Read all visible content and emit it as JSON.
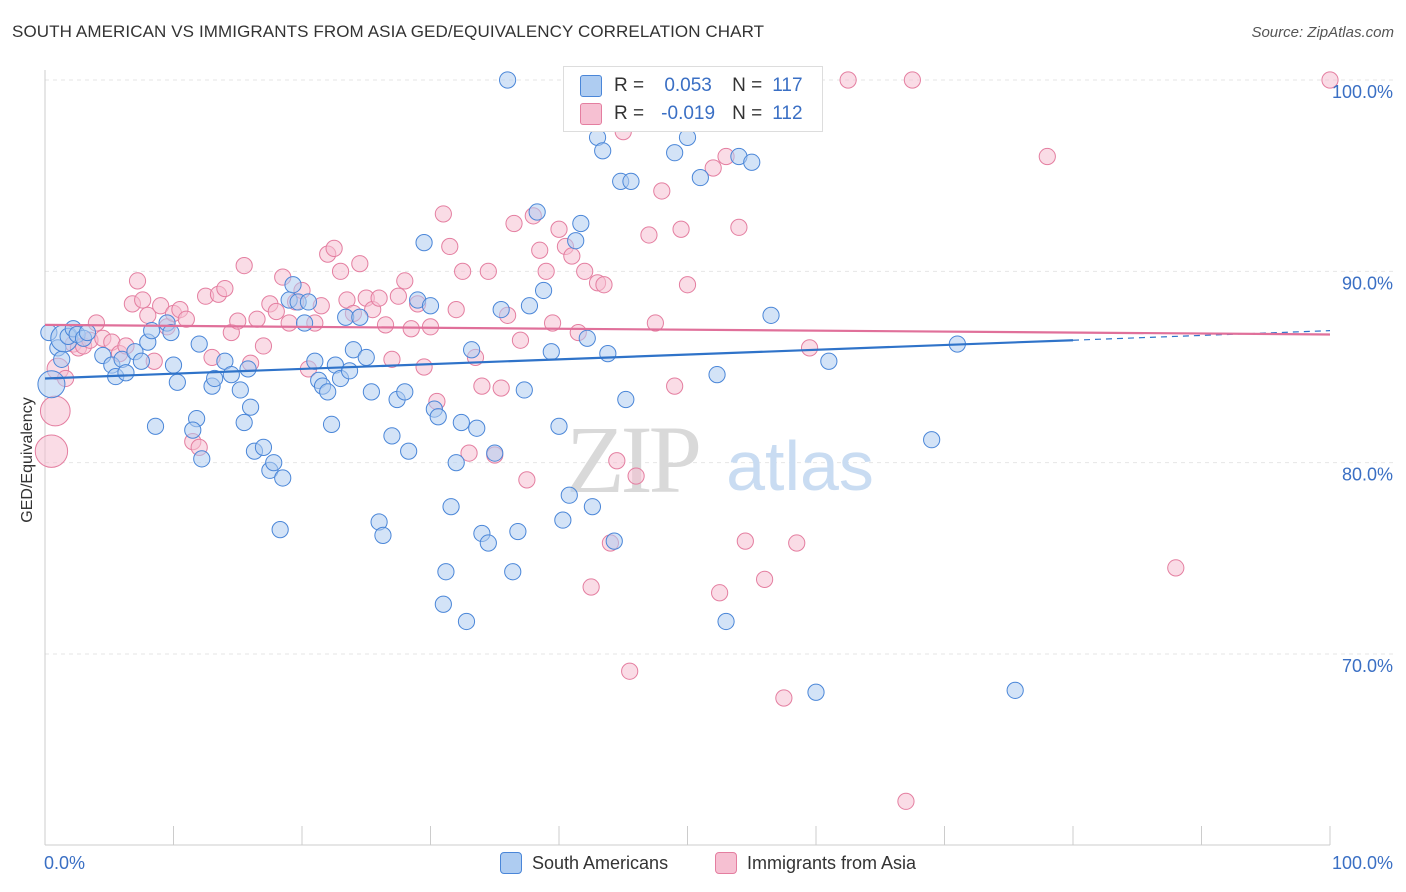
{
  "title": "SOUTH AMERICAN VS IMMIGRANTS FROM ASIA GED/EQUIVALENCY CORRELATION CHART",
  "source": "Source: ZipAtlas.com",
  "watermark": {
    "zip": "ZIP",
    "atlas": "atlas"
  },
  "colors": {
    "blue_fill": "#aeccf1",
    "blue_stroke": "#4a86d8",
    "blue_line": "#2f73c9",
    "pink_fill": "#f6c0d2",
    "pink_stroke": "#e47ea0",
    "pink_line": "#e0709a",
    "axis_text": "#3a6fc4",
    "grid": "#e6e6e6"
  },
  "legend_box": {
    "blue": {
      "r_label": "R =",
      "r_value": "0.053",
      "n_label": "N =",
      "n_value": "117"
    },
    "pink": {
      "r_label": "R =",
      "r_value": "-0.019",
      "n_label": "N =",
      "n_value": "112"
    }
  },
  "legend": [
    {
      "name": "South Americans",
      "icon": "blue-square"
    },
    {
      "name": "Immigrants from Asia",
      "icon": "pink-square"
    }
  ],
  "chart_data": {
    "type": "scatter",
    "title": "SOUTH AMERICAN VS IMMIGRANTS FROM ASIA GED/EQUIVALENCY CORRELATION CHART",
    "xlabel": "",
    "ylabel": "GED/Equivalency",
    "xlim": [
      0,
      100
    ],
    "ylim": [
      60,
      102
    ],
    "x_tick_labels": [
      "0.0%",
      "100.0%"
    ],
    "y_ticks": [
      70,
      80,
      90,
      100
    ],
    "y_tick_labels": [
      "70.0%",
      "80.0%",
      "90.0%",
      "100.0%"
    ],
    "grid": true,
    "legend_position": "bottom",
    "series": [
      {
        "name": "South Americans",
        "trend": {
          "x": [
            0,
            80,
            100
          ],
          "y": [
            84.4,
            86.4,
            86.9
          ],
          "dashed_from": 80
        },
        "points": [
          [
            0.3,
            86.8,
            6
          ],
          [
            0.5,
            84.1,
            10
          ],
          [
            1.0,
            86.0,
            6
          ],
          [
            1.3,
            85.4,
            6
          ],
          [
            1.5,
            86.5,
            10
          ],
          [
            1.8,
            86.6,
            6
          ],
          [
            2.2,
            87.0,
            6
          ],
          [
            2.5,
            86.7,
            6
          ],
          [
            3.0,
            86.5,
            6
          ],
          [
            3.3,
            86.8,
            6
          ],
          [
            4.5,
            85.6,
            6
          ],
          [
            5.2,
            85.1,
            6
          ],
          [
            5.5,
            84.5,
            6
          ],
          [
            6.0,
            85.4,
            6
          ],
          [
            6.3,
            84.7,
            6
          ],
          [
            7.0,
            85.8,
            6
          ],
          [
            7.5,
            85.3,
            6
          ],
          [
            8.0,
            86.3,
            6
          ],
          [
            8.3,
            86.9,
            6
          ],
          [
            8.6,
            81.9,
            6
          ],
          [
            9.5,
            87.3,
            6
          ],
          [
            9.8,
            86.8,
            6
          ],
          [
            10.0,
            85.1,
            6
          ],
          [
            10.3,
            84.2,
            6
          ],
          [
            12.0,
            86.2,
            6
          ],
          [
            11.8,
            82.3,
            6
          ],
          [
            11.5,
            81.7,
            6
          ],
          [
            12.2,
            80.2,
            6
          ],
          [
            13.0,
            84.0,
            6
          ],
          [
            13.2,
            84.4,
            6
          ],
          [
            14.0,
            85.3,
            6
          ],
          [
            14.5,
            84.6,
            6
          ],
          [
            15.2,
            83.8,
            6
          ],
          [
            15.5,
            82.1,
            6
          ],
          [
            15.8,
            84.9,
            6
          ],
          [
            16.0,
            82.9,
            6
          ],
          [
            16.3,
            80.6,
            6
          ],
          [
            17.0,
            80.8,
            6
          ],
          [
            17.5,
            79.6,
            6
          ],
          [
            17.8,
            80.0,
            6
          ],
          [
            18.3,
            76.5,
            6
          ],
          [
            18.5,
            79.2,
            6
          ],
          [
            19.0,
            88.5,
            6
          ],
          [
            19.3,
            89.3,
            6
          ],
          [
            19.7,
            88.4,
            6
          ],
          [
            20.2,
            87.3,
            6
          ],
          [
            20.5,
            88.4,
            6
          ],
          [
            21.0,
            85.3,
            6
          ],
          [
            21.3,
            84.3,
            6
          ],
          [
            21.6,
            84.0,
            6
          ],
          [
            22.0,
            83.7,
            6
          ],
          [
            22.3,
            82.0,
            6
          ],
          [
            22.6,
            85.1,
            6
          ],
          [
            23.0,
            84.4,
            6
          ],
          [
            23.4,
            87.6,
            6
          ],
          [
            23.7,
            84.8,
            6
          ],
          [
            24.0,
            85.9,
            6
          ],
          [
            24.5,
            87.6,
            6
          ],
          [
            25.0,
            85.5,
            6
          ],
          [
            25.4,
            83.7,
            6
          ],
          [
            26.0,
            76.9,
            6
          ],
          [
            26.3,
            76.2,
            6
          ],
          [
            27.0,
            81.4,
            6
          ],
          [
            27.4,
            83.3,
            6
          ],
          [
            28.0,
            83.7,
            6
          ],
          [
            28.3,
            80.6,
            6
          ],
          [
            29.0,
            88.5,
            6
          ],
          [
            29.5,
            91.5,
            6
          ],
          [
            30.0,
            88.2,
            6
          ],
          [
            30.3,
            82.8,
            6
          ],
          [
            30.6,
            82.4,
            6
          ],
          [
            31.0,
            72.6,
            6
          ],
          [
            31.2,
            74.3,
            6
          ],
          [
            31.6,
            77.7,
            6
          ],
          [
            32.0,
            80.0,
            6
          ],
          [
            32.4,
            82.1,
            6
          ],
          [
            32.8,
            71.7,
            6
          ],
          [
            33.2,
            85.9,
            6
          ],
          [
            33.6,
            81.8,
            6
          ],
          [
            34.0,
            76.3,
            6
          ],
          [
            34.5,
            75.8,
            6
          ],
          [
            35.0,
            80.5,
            6
          ],
          [
            35.5,
            88.0,
            6
          ],
          [
            36.0,
            100.0,
            6
          ],
          [
            36.4,
            74.3,
            6
          ],
          [
            36.8,
            76.4,
            6
          ],
          [
            37.3,
            83.8,
            6
          ],
          [
            37.7,
            88.2,
            6
          ],
          [
            38.3,
            93.1,
            6
          ],
          [
            38.8,
            89.0,
            6
          ],
          [
            39.4,
            85.8,
            6
          ],
          [
            40.0,
            81.9,
            6
          ],
          [
            40.3,
            77.0,
            6
          ],
          [
            40.8,
            78.3,
            6
          ],
          [
            41.3,
            91.6,
            6
          ],
          [
            41.7,
            92.5,
            6
          ],
          [
            42.2,
            86.5,
            6
          ],
          [
            42.6,
            77.7,
            6
          ],
          [
            43.0,
            97.0,
            6
          ],
          [
            43.4,
            96.3,
            6
          ],
          [
            43.8,
            85.7,
            6
          ],
          [
            44.3,
            75.9,
            6
          ],
          [
            44.8,
            94.7,
            6
          ],
          [
            45.2,
            83.3,
            6
          ],
          [
            45.6,
            94.7,
            6
          ],
          [
            46.3,
            100.0,
            6
          ],
          [
            48.5,
            100.0,
            6
          ],
          [
            49.0,
            96.2,
            6
          ],
          [
            50.0,
            97.0,
            6
          ],
          [
            51.0,
            94.9,
            6
          ],
          [
            52.3,
            84.6,
            6
          ],
          [
            53.0,
            71.7,
            6
          ],
          [
            53.5,
            100.0,
            6
          ],
          [
            54.0,
            96.0,
            6
          ],
          [
            55.0,
            95.7,
            6
          ],
          [
            56.5,
            87.7,
            6
          ],
          [
            60.0,
            68.0,
            6
          ],
          [
            61.0,
            85.3,
            6
          ],
          [
            69.0,
            81.2,
            6
          ],
          [
            71.0,
            86.2,
            6
          ],
          [
            75.5,
            68.1,
            6
          ]
        ]
      },
      {
        "name": "Immigrants from Asia",
        "trend": {
          "x": [
            0,
            100
          ],
          "y": [
            87.2,
            86.7
          ]
        },
        "points": [
          [
            0.5,
            80.6,
            12
          ],
          [
            0.8,
            82.7,
            11
          ],
          [
            1.0,
            84.9,
            8
          ],
          [
            1.6,
            84.4,
            6
          ],
          [
            2.2,
            86.2,
            6
          ],
          [
            2.6,
            86.0,
            6
          ],
          [
            3.0,
            86.1,
            6
          ],
          [
            3.5,
            86.4,
            6
          ],
          [
            4.0,
            87.3,
            6
          ],
          [
            4.5,
            86.5,
            6
          ],
          [
            5.2,
            86.3,
            6
          ],
          [
            5.8,
            85.7,
            6
          ],
          [
            6.3,
            86.1,
            6
          ],
          [
            6.8,
            88.3,
            6
          ],
          [
            7.2,
            89.5,
            6
          ],
          [
            7.6,
            88.5,
            6
          ],
          [
            8.0,
            87.7,
            6
          ],
          [
            8.5,
            85.3,
            6
          ],
          [
            9.0,
            88.2,
            6
          ],
          [
            9.5,
            87.1,
            6
          ],
          [
            10.0,
            87.8,
            6
          ],
          [
            10.5,
            88.0,
            6
          ],
          [
            11.0,
            87.5,
            6
          ],
          [
            11.5,
            81.1,
            6
          ],
          [
            12.0,
            80.8,
            6
          ],
          [
            12.5,
            88.7,
            6
          ],
          [
            13.0,
            85.5,
            6
          ],
          [
            13.5,
            88.8,
            6
          ],
          [
            14.0,
            89.1,
            6
          ],
          [
            14.5,
            86.8,
            6
          ],
          [
            15.0,
            87.4,
            6
          ],
          [
            15.5,
            90.3,
            6
          ],
          [
            16.0,
            85.2,
            6
          ],
          [
            16.5,
            87.5,
            6
          ],
          [
            17.0,
            86.1,
            6
          ],
          [
            17.5,
            88.3,
            6
          ],
          [
            18.0,
            87.9,
            6
          ],
          [
            18.5,
            89.7,
            6
          ],
          [
            19.0,
            87.3,
            6
          ],
          [
            19.5,
            88.4,
            6
          ],
          [
            20.0,
            89.0,
            6
          ],
          [
            20.5,
            84.9,
            6
          ],
          [
            21.0,
            87.3,
            6
          ],
          [
            21.5,
            88.2,
            6
          ],
          [
            22.0,
            90.9,
            6
          ],
          [
            22.5,
            91.2,
            6
          ],
          [
            23.0,
            90.0,
            6
          ],
          [
            23.5,
            88.5,
            6
          ],
          [
            24.0,
            87.8,
            6
          ],
          [
            24.5,
            90.4,
            6
          ],
          [
            25.0,
            88.6,
            6
          ],
          [
            25.5,
            88.0,
            6
          ],
          [
            26.0,
            88.6,
            6
          ],
          [
            26.5,
            87.2,
            6
          ],
          [
            27.0,
            85.4,
            6
          ],
          [
            27.5,
            88.7,
            6
          ],
          [
            28.0,
            89.5,
            6
          ],
          [
            28.5,
            87.0,
            6
          ],
          [
            29.0,
            88.3,
            6
          ],
          [
            29.5,
            85.0,
            6
          ],
          [
            30.0,
            87.1,
            6
          ],
          [
            30.5,
            83.2,
            6
          ],
          [
            31.0,
            93.0,
            6
          ],
          [
            31.5,
            91.3,
            6
          ],
          [
            32.0,
            88.0,
            6
          ],
          [
            32.5,
            90.0,
            6
          ],
          [
            33.0,
            80.5,
            6
          ],
          [
            33.5,
            85.5,
            6
          ],
          [
            34.0,
            84.0,
            6
          ],
          [
            34.5,
            90.0,
            6
          ],
          [
            35.0,
            80.4,
            6
          ],
          [
            35.5,
            83.9,
            6
          ],
          [
            36.0,
            87.7,
            6
          ],
          [
            36.5,
            92.5,
            6
          ],
          [
            37.0,
            86.4,
            6
          ],
          [
            37.5,
            79.1,
            6
          ],
          [
            38.0,
            92.9,
            6
          ],
          [
            38.5,
            91.1,
            6
          ],
          [
            39.0,
            90.0,
            6
          ],
          [
            39.5,
            87.3,
            6
          ],
          [
            40.0,
            92.2,
            6
          ],
          [
            40.5,
            91.3,
            6
          ],
          [
            41.0,
            90.8,
            6
          ],
          [
            41.5,
            86.8,
            6
          ],
          [
            42.0,
            90.0,
            6
          ],
          [
            42.5,
            73.5,
            6
          ],
          [
            43.0,
            89.4,
            6
          ],
          [
            43.5,
            89.3,
            6
          ],
          [
            44.0,
            75.8,
            6
          ],
          [
            44.5,
            80.1,
            6
          ],
          [
            45.0,
            97.3,
            6
          ],
          [
            45.5,
            69.1,
            6
          ],
          [
            46.0,
            79.3,
            6
          ],
          [
            47.0,
            91.9,
            6
          ],
          [
            47.5,
            87.3,
            6
          ],
          [
            48.0,
            94.2,
            6
          ],
          [
            49.0,
            84.0,
            6
          ],
          [
            49.5,
            92.2,
            6
          ],
          [
            50.0,
            89.3,
            6
          ],
          [
            52.0,
            95.4,
            6
          ],
          [
            52.5,
            73.2,
            6
          ],
          [
            53.0,
            96.0,
            6
          ],
          [
            54.0,
            92.3,
            6
          ],
          [
            54.5,
            75.9,
            6
          ],
          [
            56.0,
            73.9,
            6
          ],
          [
            57.5,
            67.7,
            6
          ],
          [
            58.5,
            75.8,
            6
          ],
          [
            59.5,
            86.0,
            6
          ],
          [
            62.5,
            100.0,
            6
          ],
          [
            67.0,
            62.3,
            6
          ],
          [
            67.5,
            100.0,
            6
          ],
          [
            78.0,
            96.0,
            6
          ],
          [
            88.0,
            74.5,
            6
          ],
          [
            100.0,
            100.0,
            6
          ]
        ]
      }
    ]
  }
}
